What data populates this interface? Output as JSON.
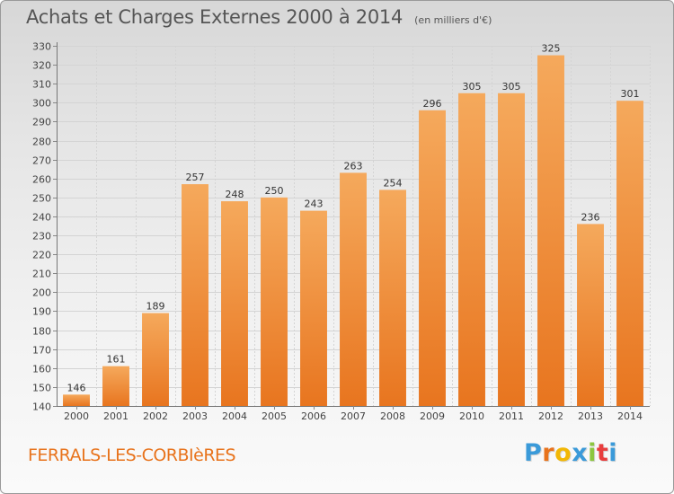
{
  "title": "Achats et Charges Externes 2000 à 2014",
  "subtitle": "(en milliers d'€)",
  "place": "FERRALS-LES-CORBIèRES",
  "logo": {
    "text": "Proxiti",
    "colors": [
      "#3a9ad9",
      "#e8731c",
      "#f2b705",
      "#3a9ad9",
      "#8cc63f",
      "#e83e3e",
      "#3a9ad9"
    ]
  },
  "colors": {
    "bar_top": "#f5a95c",
    "bar_bottom": "#e8751f",
    "grid": "#d4d4d4",
    "axis_text": "#444444",
    "value_text": "#333333"
  },
  "chart_data": {
    "type": "bar",
    "categories": [
      "2000",
      "2001",
      "2002",
      "2003",
      "2004",
      "2005",
      "2006",
      "2007",
      "2008",
      "2009",
      "2010",
      "2011",
      "2012",
      "2013",
      "2014"
    ],
    "values": [
      146,
      161,
      189,
      257,
      248,
      250,
      243,
      263,
      254,
      296,
      305,
      305,
      325,
      236,
      301
    ],
    "ylim": [
      140,
      330
    ],
    "yticks": [
      140,
      150,
      160,
      170,
      180,
      190,
      200,
      210,
      220,
      230,
      240,
      250,
      260,
      270,
      280,
      290,
      300,
      310,
      320,
      330
    ],
    "grid": true
  }
}
